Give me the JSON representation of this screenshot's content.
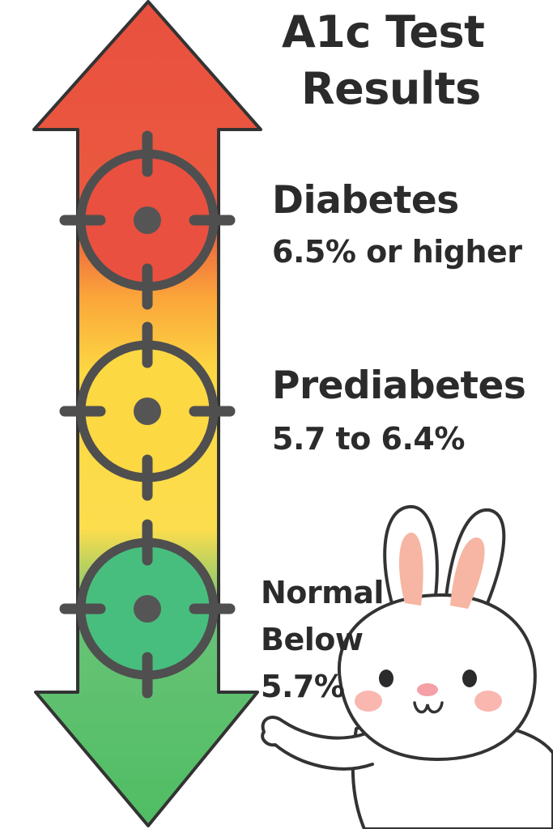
{
  "title": {
    "line1": "A1c Test",
    "line2": "Results"
  },
  "levels": [
    {
      "name": "Diabetes",
      "range": "6.5% or higher",
      "color": "#E9503F"
    },
    {
      "name": "Prediabetes",
      "range": "5.7 to 6.4%",
      "color": "#FCD843"
    },
    {
      "name": "Normal",
      "range_line1": "Below",
      "range_line2": "5.7%",
      "color": "#48BE7E"
    }
  ],
  "colors": {
    "arrow_top": "#E9503F",
    "arrow_orange": "#FBA63A",
    "arrow_yellow": "#FCDD4D",
    "arrow_bottom": "#4FBD63",
    "outline": "#333333",
    "reticle": "#4f4f4f",
    "bunny_ear": "#F6B6A3",
    "bunny_nose": "#F4A0A6",
    "bunny_cheek": "#F9B7B0"
  },
  "icons": {
    "target": "crosshair-target-icon",
    "mascot": "bunny-mascot"
  }
}
